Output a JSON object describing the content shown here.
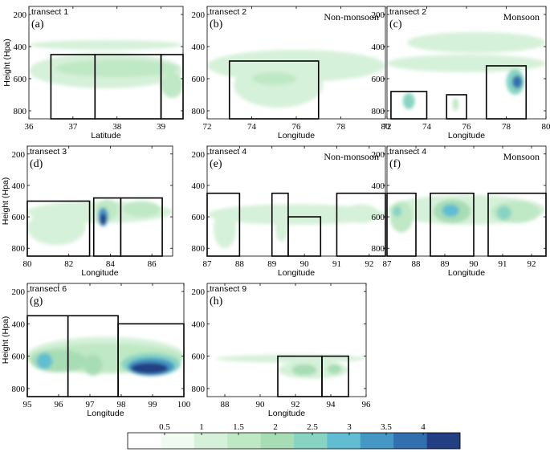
{
  "palette": [
    "#ffffff",
    "#f2fbf2",
    "#d6f1d9",
    "#bfe8c4",
    "#a7ddb5",
    "#87d4c2",
    "#60bdd2",
    "#4597c6",
    "#326fae",
    "#223f84",
    "#0c1d3d"
  ],
  "colorbar": {
    "ticks": [
      "0.5",
      "1",
      "1.5",
      "2",
      "2.5",
      "3",
      "3.5",
      "4"
    ],
    "tick_values": [
      0.5,
      1,
      1.5,
      2,
      2.5,
      3,
      3.5,
      4
    ],
    "range": [
      0,
      4.5
    ]
  },
  "chart_data": [
    {
      "id": "a",
      "type": "heatmap",
      "title": "transect 1",
      "letter": "(a)",
      "regime": "",
      "xlabel": "Latitude",
      "ylabel": "Height (Hpa)",
      "xlim": [
        36,
        39.5
      ],
      "ylim": [
        150,
        850
      ],
      "y_reversed": true,
      "xticks": [
        36,
        37,
        38,
        39
      ],
      "yticks": [
        200,
        400,
        600,
        800
      ],
      "boxes": [
        {
          "x": [
            36.5,
            37.5
          ],
          "y": [
            450,
            850
          ]
        },
        {
          "x": [
            37.5,
            39
          ],
          "y": [
            450,
            850
          ]
        },
        {
          "x": [
            39,
            39.5
          ],
          "y": [
            450,
            850
          ]
        }
      ],
      "blobs": [
        {
          "x": [
            36.0,
            39.5
          ],
          "y": [
            360,
            420
          ],
          "level": 0.7
        },
        {
          "x": [
            36.0,
            39.5
          ],
          "y": [
            440,
            660
          ],
          "level": 0.8
        },
        {
          "x": [
            36.6,
            39.4
          ],
          "y": [
            480,
            590
          ],
          "level": 1.1
        },
        {
          "x": [
            39.0,
            39.5
          ],
          "y": [
            560,
            720
          ],
          "level": 1.3
        }
      ]
    },
    {
      "id": "b",
      "type": "heatmap",
      "title": "transect 2",
      "letter": "(b)",
      "regime": "Non-monsoon",
      "xlabel": "Longitude",
      "ylabel": "",
      "xlim": [
        72,
        80
      ],
      "ylim": [
        150,
        850
      ],
      "y_reversed": true,
      "xticks": [
        72,
        74,
        76,
        78,
        80
      ],
      "yticks": [
        200,
        400,
        600,
        800
      ],
      "boxes": [
        {
          "x": [
            73,
            77
          ],
          "y": [
            490,
            850
          ]
        }
      ],
      "blobs": [
        {
          "x": [
            72,
            80
          ],
          "y": [
            420,
            620
          ],
          "level": 0.6
        },
        {
          "x": [
            73.2,
            77.2
          ],
          "y": [
            500,
            780
          ],
          "level": 0.9
        },
        {
          "x": [
            74,
            76
          ],
          "y": [
            560,
            640
          ],
          "level": 1.1
        }
      ]
    },
    {
      "id": "c",
      "type": "heatmap",
      "title": "transect 2",
      "letter": "(c)",
      "regime": "Monsoon",
      "xlabel": "Longitude",
      "ylabel": "",
      "xlim": [
        72,
        80
      ],
      "ylim": [
        150,
        850
      ],
      "y_reversed": true,
      "xticks": [
        72,
        74,
        76,
        78,
        80
      ],
      "yticks": [
        200,
        400,
        600,
        800
      ],
      "boxes": [
        {
          "x": [
            72.2,
            74
          ],
          "y": [
            680,
            850
          ]
        },
        {
          "x": [
            75,
            76
          ],
          "y": [
            700,
            850
          ]
        },
        {
          "x": [
            77,
            79
          ],
          "y": [
            520,
            850
          ]
        }
      ],
      "blobs": [
        {
          "x": [
            73,
            80
          ],
          "y": [
            310,
            440
          ],
          "level": 0.6
        },
        {
          "x": [
            72,
            80
          ],
          "y": [
            450,
            560
          ],
          "level": 0.6
        },
        {
          "x": [
            72.8,
            73.4
          ],
          "y": [
            690,
            790
          ],
          "level": 2.0
        },
        {
          "x": [
            75.3,
            75.6
          ],
          "y": [
            720,
            800
          ],
          "level": 1.2
        },
        {
          "x": [
            78,
            78.9
          ],
          "y": [
            540,
            700
          ],
          "level": 2.0
        },
        {
          "x": [
            78.3,
            78.8
          ],
          "y": [
            580,
            660
          ],
          "level": 3.5
        }
      ]
    },
    {
      "id": "d",
      "type": "heatmap",
      "title": "transect 3",
      "letter": "(d)",
      "regime": "",
      "xlabel": "Longitude",
      "ylabel": "Height (Hpa)",
      "xlim": [
        80,
        87
      ],
      "ylim": [
        150,
        850
      ],
      "y_reversed": true,
      "xticks": [
        80,
        82,
        84,
        86
      ],
      "yticks": [
        200,
        400,
        600,
        800
      ],
      "boxes": [
        {
          "x": [
            80,
            83
          ],
          "y": [
            500,
            850
          ]
        },
        {
          "x": [
            83.2,
            84.5
          ],
          "y": [
            480,
            850
          ]
        },
        {
          "x": [
            84.5,
            86.5
          ],
          "y": [
            480,
            850
          ]
        }
      ],
      "blobs": [
        {
          "x": [
            80,
            87
          ],
          "y": [
            500,
            640
          ],
          "level": 0.6
        },
        {
          "x": [
            80,
            82.8
          ],
          "y": [
            560,
            780
          ],
          "level": 0.8
        },
        {
          "x": [
            83.3,
            84.4
          ],
          "y": [
            490,
            620
          ],
          "level": 1.2
        },
        {
          "x": [
            83.4,
            83.9
          ],
          "y": [
            540,
            660
          ],
          "level": 3.0
        },
        {
          "x": [
            83.5,
            83.8
          ],
          "y": [
            580,
            650
          ],
          "level": 4.0
        },
        {
          "x": [
            84.6,
            86.4
          ],
          "y": [
            500,
            600
          ],
          "level": 1.0
        }
      ]
    },
    {
      "id": "e",
      "type": "heatmap",
      "title": "transect 4",
      "letter": "(e)",
      "regime": "Non-monsoon",
      "xlabel": "Longitude",
      "ylabel": "",
      "xlim": [
        87,
        92.5
      ],
      "ylim": [
        150,
        850
      ],
      "y_reversed": true,
      "xticks": [
        87,
        88,
        89,
        90,
        91,
        92
      ],
      "yticks": [
        200,
        400,
        600,
        800
      ],
      "boxes": [
        {
          "x": [
            87,
            88
          ],
          "y": [
            450,
            850
          ]
        },
        {
          "x": [
            89,
            89.5
          ],
          "y": [
            450,
            850
          ]
        },
        {
          "x": [
            89.5,
            90.5
          ],
          "y": [
            600,
            850
          ]
        },
        {
          "x": [
            91,
            92.5
          ],
          "y": [
            450,
            850
          ]
        }
      ],
      "blobs": [
        {
          "x": [
            87,
            92.5
          ],
          "y": [
            520,
            650
          ],
          "level": 0.6
        },
        {
          "x": [
            87.2,
            87.9
          ],
          "y": [
            550,
            800
          ],
          "level": 0.9
        },
        {
          "x": [
            89.1,
            89.5
          ],
          "y": [
            560,
            760
          ],
          "level": 0.9
        },
        {
          "x": [
            91.2,
            92.3
          ],
          "y": [
            520,
            640
          ],
          "level": 0.9
        }
      ]
    },
    {
      "id": "f",
      "type": "heatmap",
      "title": "transect 4",
      "letter": "(f)",
      "regime": "Monsoon",
      "xlabel": "Longitude",
      "ylabel": "",
      "xlim": [
        87,
        92.5
      ],
      "ylim": [
        150,
        850
      ],
      "y_reversed": true,
      "xticks": [
        87,
        88,
        89,
        90,
        91,
        92
      ],
      "yticks": [
        200,
        400,
        600,
        800
      ],
      "boxes": [
        {
          "x": [
            87,
            88
          ],
          "y": [
            450,
            850
          ]
        },
        {
          "x": [
            88.5,
            90
          ],
          "y": [
            450,
            850
          ]
        },
        {
          "x": [
            90.5,
            92.5
          ],
          "y": [
            450,
            850
          ]
        }
      ],
      "blobs": [
        {
          "x": [
            87,
            92.5
          ],
          "y": [
            460,
            650
          ],
          "level": 0.8
        },
        {
          "x": [
            87.1,
            87.9
          ],
          "y": [
            500,
            700
          ],
          "level": 1.3
        },
        {
          "x": [
            87.2,
            87.5
          ],
          "y": [
            530,
            600
          ],
          "level": 2.3
        },
        {
          "x": [
            88.6,
            89.9
          ],
          "y": [
            490,
            640
          ],
          "level": 1.8
        },
        {
          "x": [
            88.9,
            89.5
          ],
          "y": [
            520,
            600
          ],
          "level": 2.8
        },
        {
          "x": [
            90.6,
            92.3
          ],
          "y": [
            500,
            640
          ],
          "level": 1.3
        },
        {
          "x": [
            90.8,
            91.3
          ],
          "y": [
            530,
            620
          ],
          "level": 2.3
        }
      ]
    },
    {
      "id": "g",
      "type": "heatmap",
      "title": "transect 6",
      "letter": "(g)",
      "regime": "",
      "xlabel": "Longitude",
      "ylabel": "Height (Hpa)",
      "xlim": [
        95,
        100
      ],
      "ylim": [
        150,
        850
      ],
      "y_reversed": true,
      "xticks": [
        95,
        96,
        97,
        98,
        99,
        100
      ],
      "yticks": [
        200,
        400,
        600,
        800
      ],
      "boxes": [
        {
          "x": [
            95,
            96.3
          ],
          "y": [
            350,
            850
          ]
        },
        {
          "x": [
            96.3,
            97.9
          ],
          "y": [
            350,
            850
          ]
        },
        {
          "x": [
            97.9,
            100
          ],
          "y": [
            400,
            850
          ]
        }
      ],
      "blobs": [
        {
          "x": [
            95,
            100
          ],
          "y": [
            480,
            710
          ],
          "level": 0.8
        },
        {
          "x": [
            95,
            100
          ],
          "y": [
            520,
            700
          ],
          "level": 1.2
        },
        {
          "x": [
            95.1,
            96.9
          ],
          "y": [
            560,
            700
          ],
          "level": 1.8
        },
        {
          "x": [
            95.3,
            95.8
          ],
          "y": [
            580,
            680
          ],
          "level": 2.5
        },
        {
          "x": [
            96.8,
            97.4
          ],
          "y": [
            590,
            720
          ],
          "level": 1.8
        },
        {
          "x": [
            98,
            99.9
          ],
          "y": [
            580,
            720
          ],
          "level": 2.2
        },
        {
          "x": [
            98.2,
            99.7
          ],
          "y": [
            610,
            720
          ],
          "level": 3.0
        },
        {
          "x": [
            98.3,
            99.5
          ],
          "y": [
            640,
            710
          ],
          "level": 4.0
        }
      ]
    },
    {
      "id": "h",
      "type": "heatmap",
      "title": "transect 9",
      "letter": "(h)",
      "regime": "",
      "xlabel": "Longitude",
      "ylabel": "",
      "xlim": [
        87,
        96
      ],
      "ylim": [
        150,
        850
      ],
      "y_reversed": true,
      "xticks": [
        88,
        90,
        92,
        94,
        96
      ],
      "yticks": [
        200,
        400,
        600,
        800
      ],
      "boxes": [
        {
          "x": [
            91,
            93.5
          ],
          "y": [
            600,
            850
          ]
        },
        {
          "x": [
            93.5,
            95
          ],
          "y": [
            600,
            850
          ]
        }
      ],
      "blobs": [
        {
          "x": [
            87.5,
            96
          ],
          "y": [
            590,
            640
          ],
          "level": 0.6
        },
        {
          "x": [
            91,
            95
          ],
          "y": [
            630,
            740
          ],
          "level": 0.9
        },
        {
          "x": [
            91.8,
            93.2
          ],
          "y": [
            650,
            720
          ],
          "level": 1.7
        },
        {
          "x": [
            93.8,
            94.6
          ],
          "y": [
            650,
            710
          ],
          "level": 1.6
        }
      ]
    }
  ]
}
